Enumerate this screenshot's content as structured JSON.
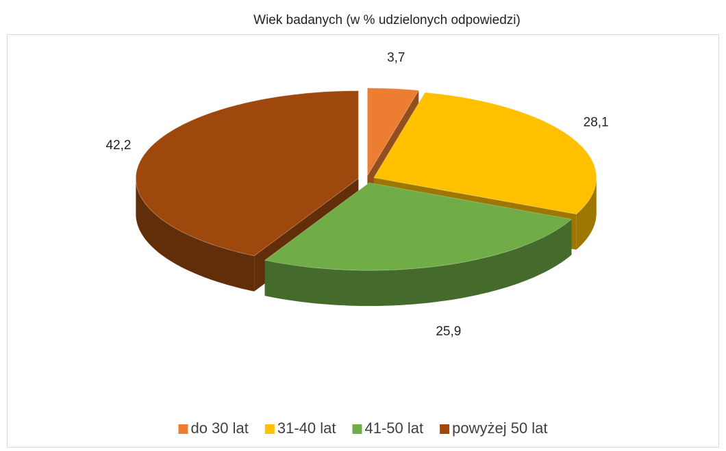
{
  "chart_data": {
    "type": "pie",
    "title": "Wiek badanych (w % udzielonych odpowiedzi)",
    "categories": [
      "do 30 lat",
      "31-40 lat",
      "41-50 lat",
      "powyżej 50 lat"
    ],
    "values": [
      3.7,
      28.1,
      25.9,
      42.2
    ],
    "value_labels": [
      "3,7",
      "28,1",
      "25,9",
      "42,2"
    ],
    "colors": [
      "#ED7D31",
      "#FFC000",
      "#70AD47",
      "#9E480E"
    ],
    "legend": "bottom"
  }
}
